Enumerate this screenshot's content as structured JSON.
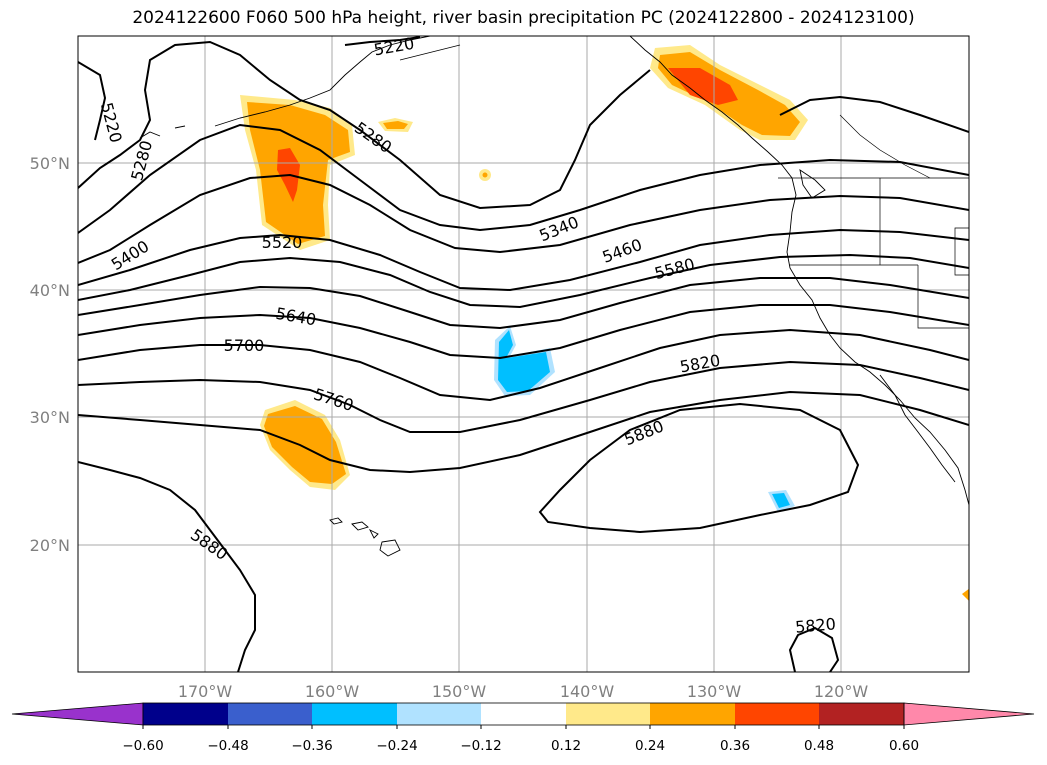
{
  "title": "2024122600 F060 500 hPa height, river basin precipitation PC (2024122800 - 2024123100)",
  "map": {
    "lon_ticks": [
      "170°W",
      "160°W",
      "150°W",
      "140°W",
      "130°W",
      "120°W"
    ],
    "lat_ticks": [
      "50°N",
      "40°N",
      "30°N",
      "20°N"
    ],
    "contour_labels": [
      "5220",
      "5220",
      "5280",
      "5280",
      "5400",
      "5520",
      "5340",
      "5460",
      "5580",
      "5640",
      "5700",
      "5760",
      "5820",
      "5880",
      "5880",
      "5820"
    ],
    "colors": {
      "contour": "#000000",
      "grid": "#aaaaaa",
      "tick_text": "#808080"
    }
  },
  "colorbar": {
    "ticks": [
      "−0.60",
      "−0.48",
      "−0.36",
      "−0.24",
      "−0.12",
      "0.12",
      "0.24",
      "0.36",
      "0.48",
      "0.60"
    ],
    "colors": [
      "#9932cc",
      "#00008b",
      "#3a5fcd",
      "#00bfff",
      "#b0e2ff",
      "#ffffff",
      "#ffe98a",
      "#ffa500",
      "#ff4500",
      "#b22222",
      "#ff88aa"
    ]
  }
}
